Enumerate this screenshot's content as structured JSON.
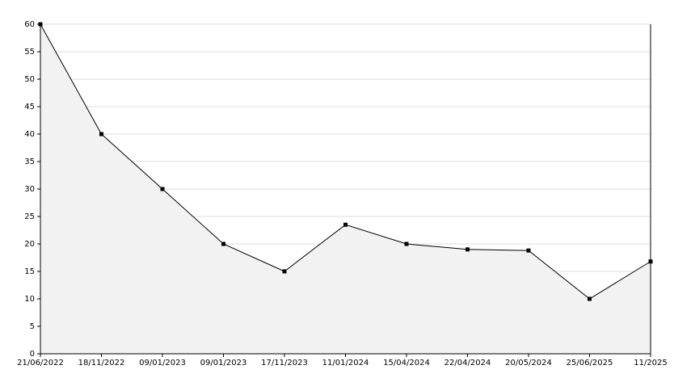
{
  "chart_data": {
    "type": "line",
    "categories": [
      "21/06/2022",
      "18/11/2022",
      "09/01/2023",
      "09/01/2023",
      "17/11/2023",
      "11/01/2024",
      "15/04/2024",
      "22/04/2024",
      "20/05/2024",
      "25/06/2025",
      "11/2025"
    ],
    "values": [
      60,
      40,
      30,
      20,
      15,
      23.5,
      20,
      19,
      18.8,
      10,
      16.8
    ],
    "color": "#000000",
    "fill": "#f2f2f2",
    "ylim": [
      0,
      60
    ],
    "yticks": [
      0,
      5,
      10,
      15,
      20,
      25,
      30,
      35,
      40,
      45,
      50,
      55,
      60
    ],
    "grid": true
  }
}
